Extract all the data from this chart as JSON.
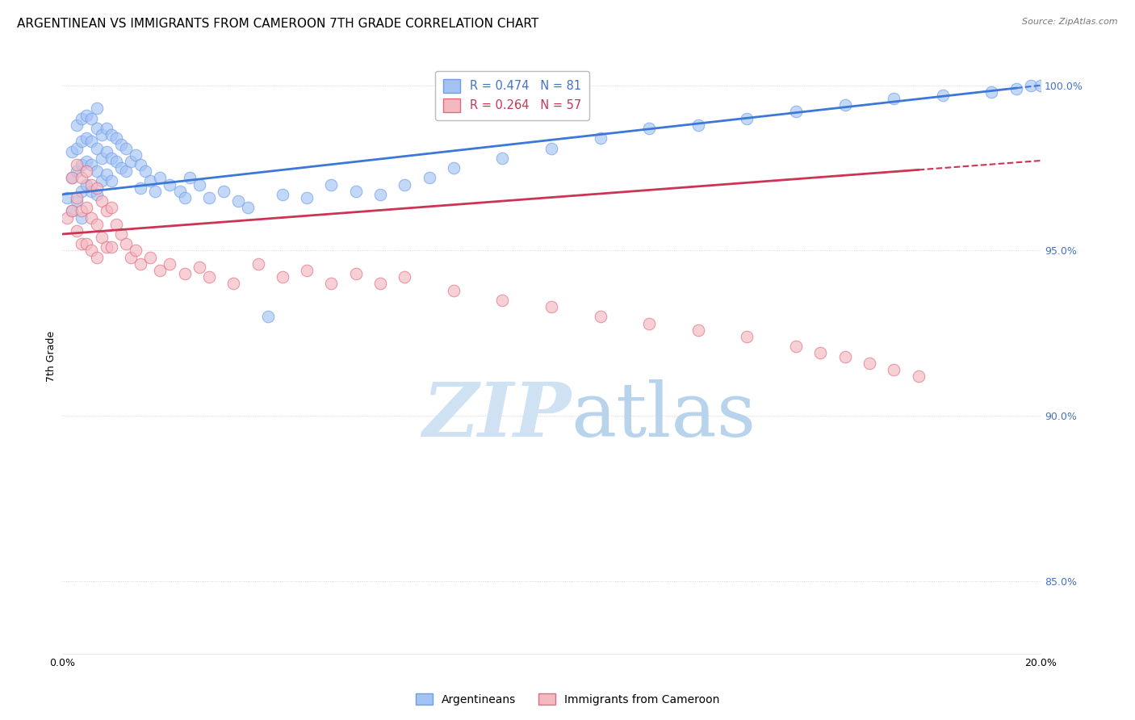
{
  "title": "ARGENTINEAN VS IMMIGRANTS FROM CAMEROON 7TH GRADE CORRELATION CHART",
  "source": "Source: ZipAtlas.com",
  "ylabel": "7th Grade",
  "ytick_labels": [
    "85.0%",
    "90.0%",
    "95.0%",
    "100.0%"
  ],
  "yticks_vals": [
    0.85,
    0.9,
    0.95,
    1.0
  ],
  "xmin": 0.0,
  "xmax": 0.2,
  "ymin": 0.828,
  "ymax": 1.008,
  "legend1_label": "Argentineans",
  "legend2_label": "Immigrants from Cameroon",
  "r_blue": 0.474,
  "n_blue": 81,
  "r_pink": 0.264,
  "n_pink": 57,
  "blue_color": "#a4c2f4",
  "pink_color": "#f4b8c1",
  "blue_edge_color": "#6d9eeb",
  "pink_edge_color": "#e06c7e",
  "blue_line_color": "#3b78d8",
  "pink_line_color": "#cc3355",
  "watermark_zip_color": "#cfe2f3",
  "watermark_atlas_color": "#b8d4ed",
  "background_color": "#ffffff",
  "grid_color": "#cccccc",
  "title_fontsize": 11,
  "axis_label_fontsize": 9,
  "tick_fontsize": 9,
  "source_fontsize": 8,
  "blue_points_x": [
    0.001,
    0.002,
    0.002,
    0.002,
    0.003,
    0.003,
    0.003,
    0.003,
    0.004,
    0.004,
    0.004,
    0.004,
    0.004,
    0.005,
    0.005,
    0.005,
    0.005,
    0.006,
    0.006,
    0.006,
    0.006,
    0.007,
    0.007,
    0.007,
    0.007,
    0.007,
    0.008,
    0.008,
    0.008,
    0.009,
    0.009,
    0.009,
    0.01,
    0.01,
    0.01,
    0.011,
    0.011,
    0.012,
    0.012,
    0.013,
    0.013,
    0.014,
    0.015,
    0.016,
    0.016,
    0.017,
    0.018,
    0.019,
    0.02,
    0.022,
    0.024,
    0.025,
    0.026,
    0.028,
    0.03,
    0.033,
    0.036,
    0.038,
    0.042,
    0.045,
    0.05,
    0.055,
    0.06,
    0.065,
    0.07,
    0.075,
    0.08,
    0.09,
    0.1,
    0.11,
    0.12,
    0.13,
    0.14,
    0.15,
    0.16,
    0.17,
    0.18,
    0.19,
    0.195,
    0.198,
    0.2
  ],
  "blue_points_y": [
    0.966,
    0.98,
    0.972,
    0.962,
    0.988,
    0.981,
    0.974,
    0.965,
    0.99,
    0.983,
    0.976,
    0.968,
    0.96,
    0.991,
    0.984,
    0.977,
    0.97,
    0.99,
    0.983,
    0.976,
    0.968,
    0.993,
    0.987,
    0.981,
    0.974,
    0.967,
    0.985,
    0.978,
    0.971,
    0.987,
    0.98,
    0.973,
    0.985,
    0.978,
    0.971,
    0.984,
    0.977,
    0.982,
    0.975,
    0.981,
    0.974,
    0.977,
    0.979,
    0.976,
    0.969,
    0.974,
    0.971,
    0.968,
    0.972,
    0.97,
    0.968,
    0.966,
    0.972,
    0.97,
    0.966,
    0.968,
    0.965,
    0.963,
    0.93,
    0.967,
    0.966,
    0.97,
    0.968,
    0.967,
    0.97,
    0.972,
    0.975,
    0.978,
    0.981,
    0.984,
    0.987,
    0.988,
    0.99,
    0.992,
    0.994,
    0.996,
    0.997,
    0.998,
    0.999,
    1.0,
    1.0
  ],
  "pink_points_x": [
    0.001,
    0.002,
    0.002,
    0.003,
    0.003,
    0.003,
    0.004,
    0.004,
    0.004,
    0.005,
    0.005,
    0.005,
    0.006,
    0.006,
    0.006,
    0.007,
    0.007,
    0.007,
    0.008,
    0.008,
    0.009,
    0.009,
    0.01,
    0.01,
    0.011,
    0.012,
    0.013,
    0.014,
    0.015,
    0.016,
    0.018,
    0.02,
    0.022,
    0.025,
    0.028,
    0.03,
    0.035,
    0.04,
    0.045,
    0.05,
    0.055,
    0.06,
    0.065,
    0.07,
    0.08,
    0.09,
    0.1,
    0.11,
    0.12,
    0.13,
    0.14,
    0.15,
    0.155,
    0.16,
    0.165,
    0.17,
    0.175
  ],
  "pink_points_y": [
    0.96,
    0.972,
    0.962,
    0.976,
    0.966,
    0.956,
    0.972,
    0.962,
    0.952,
    0.974,
    0.963,
    0.952,
    0.97,
    0.96,
    0.95,
    0.969,
    0.958,
    0.948,
    0.965,
    0.954,
    0.962,
    0.951,
    0.963,
    0.951,
    0.958,
    0.955,
    0.952,
    0.948,
    0.95,
    0.946,
    0.948,
    0.944,
    0.946,
    0.943,
    0.945,
    0.942,
    0.94,
    0.946,
    0.942,
    0.944,
    0.94,
    0.943,
    0.94,
    0.942,
    0.938,
    0.935,
    0.933,
    0.93,
    0.928,
    0.926,
    0.924,
    0.921,
    0.919,
    0.918,
    0.916,
    0.914,
    0.912
  ]
}
